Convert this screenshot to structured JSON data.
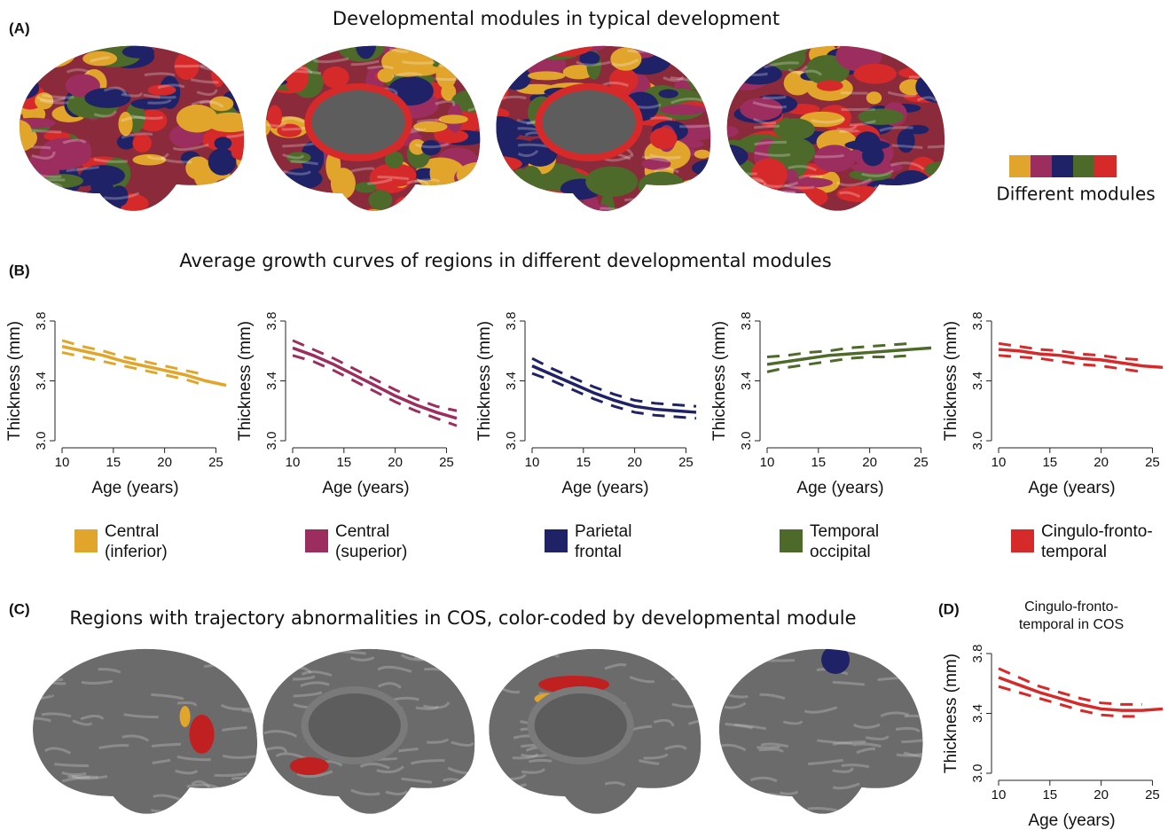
{
  "panels": {
    "a": {
      "label": "(A)",
      "title": "Developmental modules in typical development",
      "legend": "Different modules"
    },
    "b": {
      "label": "(B)",
      "title": "Average growth curves of regions in different developmental modules"
    },
    "c": {
      "label": "(C)",
      "title": "Regions with trajectory abnormalities in COS, color-coded by developmental module"
    },
    "d": {
      "label": "(D)"
    }
  },
  "chart_data": [
    {
      "type": "line",
      "xlabel": "Age (years)",
      "ylabel": "Thickness (mm)",
      "xlim": [
        10,
        26
      ],
      "xticks": [
        10,
        15,
        20,
        25
      ],
      "ylim": [
        3,
        3.8
      ],
      "yticks": [
        {
          "value": 3,
          "label": "3.0"
        },
        3.4,
        3.8
      ],
      "x": [
        10,
        12,
        14,
        16,
        18,
        20,
        22,
        24,
        26
      ],
      "series": [
        {
          "name": "Central (inferior)",
          "color": "#e2a52b",
          "values": [
            3.63,
            3.6,
            3.57,
            3.53,
            3.5,
            3.47,
            3.44,
            3.4,
            3.37
          ]
        },
        {
          "color": "#e2a52b",
          "values": [
            3.67,
            3.63,
            3.6,
            3.56,
            3.53,
            3.5,
            3.47,
            3.44,
            null
          ]
        },
        {
          "color": "#e2a52b",
          "values": [
            3.59,
            3.56,
            3.53,
            3.5,
            3.47,
            3.44,
            3.41,
            3.37,
            null
          ]
        }
      ]
    },
    {
      "type": "line",
      "xlabel": "Age (years)",
      "ylabel": "Thickness (mm)",
      "xlim": [
        10,
        26
      ],
      "xticks": [
        10,
        15,
        20,
        25
      ],
      "ylim": [
        3,
        3.8
      ],
      "yticks": [
        {
          "value": 3,
          "label": "3.0"
        },
        3.4,
        3.8
      ],
      "x": [
        10,
        12,
        14,
        16,
        18,
        20,
        22,
        24,
        26
      ],
      "series": [
        {
          "name": "Central (superior)",
          "color": "#9c2e5f",
          "values": [
            3.62,
            3.57,
            3.51,
            3.44,
            3.37,
            3.3,
            3.24,
            3.19,
            3.15
          ]
        },
        {
          "color": "#9c2e5f",
          "values": [
            3.67,
            3.61,
            3.55,
            3.48,
            3.41,
            3.34,
            3.28,
            3.23,
            3.2
          ]
        },
        {
          "color": "#9c2e5f",
          "values": [
            3.57,
            3.53,
            3.47,
            3.4,
            3.33,
            3.26,
            3.2,
            3.15,
            3.1
          ]
        }
      ]
    },
    {
      "type": "line",
      "xlabel": "Age (years)",
      "ylabel": "Thickness (mm)",
      "xlim": [
        10,
        26
      ],
      "xticks": [
        10,
        15,
        20,
        25
      ],
      "ylim": [
        3,
        3.8
      ],
      "yticks": [
        {
          "value": 3,
          "label": "3.0"
        },
        3.4,
        3.8
      ],
      "x": [
        10,
        12,
        14,
        16,
        18,
        20,
        22,
        24,
        26
      ],
      "series": [
        {
          "name": "Parietal frontal",
          "color": "#1f2266",
          "values": [
            3.5,
            3.44,
            3.38,
            3.32,
            3.27,
            3.23,
            3.21,
            3.2,
            3.19
          ]
        },
        {
          "color": "#1f2266",
          "values": [
            3.55,
            3.48,
            3.42,
            3.36,
            3.31,
            3.27,
            3.25,
            3.24,
            3.23
          ]
        },
        {
          "color": "#1f2266",
          "values": [
            3.45,
            3.4,
            3.34,
            3.28,
            3.23,
            3.19,
            3.17,
            3.16,
            3.15
          ]
        }
      ]
    },
    {
      "type": "line",
      "xlabel": "Age (years)",
      "ylabel": "Thickness (mm)",
      "xlim": [
        10,
        26
      ],
      "xticks": [
        10,
        15,
        20,
        25
      ],
      "ylim": [
        3,
        3.8
      ],
      "yticks": [
        {
          "value": 3,
          "label": "3.0"
        },
        3.4,
        3.8
      ],
      "x": [
        10,
        12,
        14,
        16,
        18,
        20,
        22,
        24,
        26
      ],
      "series": [
        {
          "name": "Temporal occipital",
          "color": "#4d6a2a",
          "values": [
            3.51,
            3.53,
            3.55,
            3.57,
            3.58,
            3.59,
            3.6,
            3.61,
            3.62
          ]
        },
        {
          "color": "#4d6a2a",
          "values": [
            3.56,
            3.57,
            3.59,
            3.6,
            3.62,
            3.63,
            3.64,
            3.65,
            null
          ]
        },
        {
          "color": "#4d6a2a",
          "values": [
            3.46,
            3.49,
            3.51,
            3.53,
            3.55,
            3.56,
            3.56,
            3.57,
            null
          ]
        }
      ]
    },
    {
      "type": "line",
      "xlabel": "Age (years)",
      "ylabel": "Thickness (mm)",
      "xlim": [
        10,
        26
      ],
      "xticks": [
        10,
        15,
        20,
        25
      ],
      "ylim": [
        3,
        3.8
      ],
      "yticks": [
        {
          "value": 3,
          "label": "3.0"
        },
        3.4,
        3.8
      ],
      "x": [
        10,
        12,
        14,
        16,
        18,
        20,
        22,
        24,
        26
      ],
      "series": [
        {
          "name": "Cingulo-fronto-temporal",
          "color": "#d62a2a",
          "values": [
            3.61,
            3.6,
            3.58,
            3.57,
            3.55,
            3.54,
            3.52,
            3.5,
            3.49
          ]
        },
        {
          "color": "#d62a2a",
          "values": [
            3.65,
            3.63,
            3.61,
            3.6,
            3.58,
            3.57,
            3.55,
            3.54,
            null
          ]
        },
        {
          "color": "#d62a2a",
          "values": [
            3.57,
            3.56,
            3.55,
            3.53,
            3.51,
            3.5,
            3.48,
            3.46,
            null
          ]
        }
      ]
    },
    {
      "type": "line",
      "title": "Cingulo-fronto-temporal in COS",
      "xlabel": "Age (years)",
      "ylabel": "Thickness (mm)",
      "xlim": [
        10,
        26
      ],
      "xticks": [
        10,
        15,
        20,
        25
      ],
      "ylim": [
        3,
        3.8
      ],
      "yticks": [
        {
          "value": 3,
          "label": "3.0"
        },
        3.4,
        3.8
      ],
      "x": [
        10,
        12,
        14,
        16,
        18,
        20,
        22,
        24,
        26
      ],
      "series": [
        {
          "color": "#d62a2a",
          "values": [
            3.64,
            3.59,
            3.54,
            3.5,
            3.46,
            3.43,
            3.42,
            3.42,
            3.43
          ]
        },
        {
          "color": "#d62a2a",
          "values": [
            3.7,
            3.64,
            3.58,
            3.54,
            3.5,
            3.47,
            3.46,
            3.46,
            null
          ]
        },
        {
          "color": "#d62a2a",
          "values": [
            3.58,
            3.54,
            3.5,
            3.46,
            3.42,
            3.39,
            3.38,
            3.38,
            null
          ]
        }
      ]
    }
  ]
}
